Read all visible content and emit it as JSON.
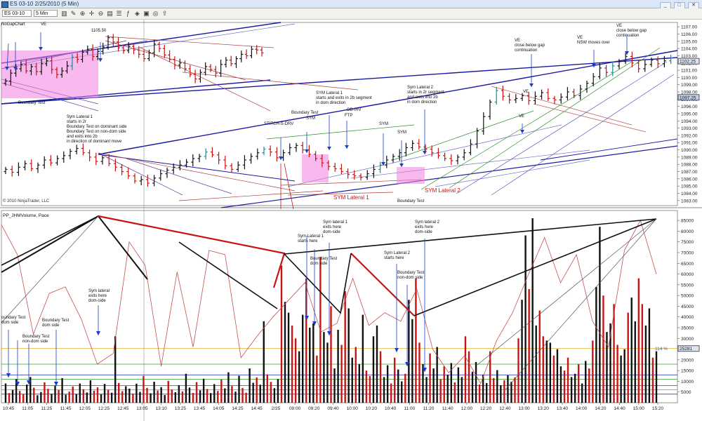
{
  "window": {
    "title": "ES 03-10  2/25/2010 (5 Min)",
    "buttons": [
      "_",
      "□",
      "✕"
    ]
  },
  "toolbar": {
    "instrument": "ES 03-10",
    "interval": "5 Min",
    "icons": [
      "chart-style-icon",
      "magnifier-plus-icon",
      "magnifier-minus-icon",
      "crosshair-icon",
      "properties-icon",
      "indicators-icon",
      "strategies-icon",
      "data-box-icon",
      "drawing-tools-icon",
      "pencil-icon",
      "snapshot-icon",
      "share-icon"
    ]
  },
  "colors": {
    "up_bar": "#111111",
    "down_bar": "#c81414",
    "teal_bar": "#139090",
    "trend_blue": "#1a1aa0",
    "pink_zone": "#f080e0",
    "annot_blue": "#1a3cc8",
    "sym_red": "#c81414"
  },
  "chart_data": [
    {
      "type": "line",
      "name": "price-panel",
      "y_tick_labels": [
        "1083.00",
        "1084.00",
        "1085.00",
        "1086.00",
        "1087.00",
        "1088.00",
        "1089.00",
        "1090.00",
        "1091.00",
        "1092.00",
        "1093.00",
        "1094.00",
        "1095.00",
        "1096.00",
        "1097.00",
        "1098.00",
        "1099.00",
        "1100.00",
        "1101.00",
        "1102.00",
        "1103.00",
        "1104.00",
        "1105.00",
        "1106.00",
        "1107.00"
      ],
      "ylim": [
        1082.3,
        1107.6
      ],
      "price_tags": [
        {
          "label": "1102.25",
          "value": 1102.25
        },
        {
          "label": "1097.25",
          "value": 1097.25
        }
      ],
      "copyright": "© 2010 NinjaTrader, LLC",
      "annotations": [
        {
          "text": "NoGapChart"
        },
        {
          "text": "VE"
        },
        {
          "text": "1105.50"
        },
        {
          "text": "Boundary Test"
        },
        {
          "text": "Sym Lateral 1\nstarts in 2r\nBoundary Test on dominant side\nBoundary Test on non-dom side\nand exits into 2b\nin direction of dominant move"
        },
        {
          "text": "SYM Lateral 1\nstarts and exits in 2b segment\nin dom direction"
        },
        {
          "text": "Boundary Test"
        },
        {
          "text": "STITCH-S-DRV"
        },
        {
          "text": "SYM"
        },
        {
          "text": "OB-IRV"
        },
        {
          "text": "FTP"
        },
        {
          "text": "SYM"
        },
        {
          "text": "SYM"
        },
        {
          "text": "Sym Lateral 2\nstarts in 2r segment\nand exits into 2b\nin dom direction"
        },
        {
          "text": "SYM Lateral 1"
        },
        {
          "text": "SYM Lateral 2"
        },
        {
          "text": "Boundary Test"
        },
        {
          "text": "VE"
        },
        {
          "text": "VE"
        },
        {
          "text": "VE\nclose below gap\ncontinuation"
        },
        {
          "text": "VE\nNSW moves over"
        },
        {
          "text": "VE\nclose below gap\ncontinuation"
        }
      ],
      "series": [
        {
          "values": [
            1099.5,
            1100.6,
            1101.2,
            1101.8,
            1100.9,
            1101.5,
            1100.8,
            1101.9,
            1102.3,
            1101.1,
            1100.4,
            1100.9,
            1101.6,
            1102.8,
            1102.5,
            1103.5,
            1103.9,
            1102.9,
            1103.6,
            1104.2,
            1105.5,
            1104.9,
            1104.1,
            1103.7,
            1104.3,
            1103.8,
            1103.2,
            1102.6,
            1103.4,
            1104.6,
            1104.0,
            1103.1,
            1102.5,
            1101.7,
            1102.0,
            1101.2,
            1100.4,
            1099.8,
            1100.7,
            1101.5,
            1101.1,
            1100.6,
            1101.8,
            1102.4,
            1101.9,
            1102.6,
            1103.2,
            1103.0,
            1103.9,
            1103.8,
            1103.4
          ]
        },
        {
          "values": [
            1087.3,
            1086.9,
            1087.6,
            1088.1,
            1087.4,
            1087.9,
            1088.6,
            1088.2,
            1088.8,
            1089.2,
            1089.8,
            1090.2,
            1089.6,
            1089.0,
            1088.4,
            1088.9,
            1088.1,
            1087.6,
            1087.0,
            1086.4,
            1085.7,
            1085.9,
            1085.4,
            1086.1,
            1086.7,
            1087.2,
            1087.6,
            1087.9,
            1088.3,
            1088.8,
            1089.1,
            1089.7,
            1089.3,
            1088.6,
            1087.8,
            1087.3,
            1087.9,
            1088.6,
            1089.1,
            1089.6,
            1090.1,
            1089.7,
            1088.9,
            1089.6,
            1090.3,
            1090.6,
            1090.0,
            1089.4,
            1088.8,
            1088.2,
            1087.7,
            1087.4,
            1087.0,
            1086.6,
            1086.4,
            1086.2,
            1086.7,
            1087.3,
            1087.9,
            1088.6,
            1089.1,
            1089.6,
            1090.3,
            1090.9,
            1090.4,
            1090.1,
            1089.6,
            1089.2,
            1088.8,
            1088.5,
            1089.0,
            1089.6,
            1090.8,
            1092.6,
            1094.6,
            1096.6,
            1098.2,
            1097.4,
            1096.9,
            1097.1,
            1097.5,
            1096.8,
            1097.4,
            1097.9,
            1097.1,
            1096.9,
            1097.3,
            1098.0,
            1097.5,
            1098.4,
            1099.2,
            1100.1,
            1101.3,
            1100.7,
            1101.6,
            1102.2,
            1102.9,
            1102.0,
            1101.2,
            1101.8,
            1102.4,
            1101.9,
            1102.3,
            1102.7
          ]
        }
      ]
    },
    {
      "type": "bar",
      "name": "volume-panel",
      "title": "PP_JHMVolume, Pace",
      "y_tick_labels": [
        "5000",
        "10000",
        "15000",
        "20000",
        "25000",
        "30000",
        "35000",
        "40000",
        "45000",
        "50000",
        "55000",
        "60000",
        "65000",
        "70000",
        "75000",
        "80000",
        "85000"
      ],
      "ylim": [
        0,
        87000
      ],
      "pace_label": "114 %",
      "pace_value": "25281",
      "x_tick_labels": [
        "10:45",
        "11:05",
        "11:25",
        "11:45",
        "12:05",
        "12:25",
        "12:45",
        "13:05",
        "13:10",
        "13:25",
        "13:45",
        "14:05",
        "14:25",
        "14:45",
        "2/25",
        "09:00",
        "09:20",
        "09:40",
        "10:00",
        "10:20",
        "10:40",
        "11:00",
        "11:20",
        "11:40",
        "12:00",
        "12:20",
        "12:40",
        "13:00",
        "13:20",
        "13:40",
        "14:00",
        "14:20",
        "14:40",
        "15:00",
        "15:20"
      ],
      "annotations": [
        {
          "text": "oundary Test\ndom side"
        },
        {
          "text": "Boundary Test\nnon-dom side"
        },
        {
          "text": "Boundary Test\ndom side"
        },
        {
          "text": "Sym lateral\nexits here\ndom-side"
        },
        {
          "text": "Sym lateral 1\nexits here\ndom-side"
        },
        {
          "text": "Sym Lateral 1\nstarts here"
        },
        {
          "text": "Boundary Test\ndom side"
        },
        {
          "text": "Sym Lateral 2\nstarts here"
        },
        {
          "text": "Boundary Test\nnon-dom side"
        },
        {
          "text": "Sym lateral 2\nexits here\ndom-side"
        }
      ],
      "series": [
        {
          "name": "volume",
          "values": [
            9000,
            4500,
            6000,
            11000,
            5500,
            4000,
            8500,
            12000,
            7000,
            3500,
            5000,
            9500,
            6500,
            4200,
            8000,
            6000,
            11500,
            3800,
            5200,
            7600,
            4100,
            9000,
            6300,
            4800,
            10500,
            5600,
            7200,
            3900,
            8800,
            6100,
            4700,
            31000,
            9200,
            5400,
            7700,
            6600,
            4300,
            8900,
            5100,
            12500,
            6900,
            4400,
            9800,
            5700,
            7300,
            3600,
            10200,
            6200,
            4900,
            8200,
            5300,
            13500,
            7100,
            4600,
            9600,
            5800,
            11200,
            6400,
            4500,
            8700,
            5500,
            10800,
            6700,
            14200,
            7800,
            5200,
            12600,
            6900,
            4700,
            16000,
            9300,
            11800,
            8400,
            38000,
            13200,
            9700,
            6800,
            11000,
            64000,
            47000,
            42000,
            36000,
            30000,
            24000,
            41000,
            58000,
            35000,
            37000,
            22000,
            68000,
            33000,
            28000,
            45000,
            16000,
            34000,
            27000,
            52000,
            44000,
            21000,
            26000,
            18000,
            41000,
            15000,
            12500,
            31000,
            36000,
            24000,
            12000,
            17500,
            9000,
            21000,
            15500,
            10000,
            13500,
            48000,
            39000,
            58000,
            28000,
            18000,
            12000,
            23000,
            16000,
            26000,
            11000,
            17000,
            13000,
            18500,
            9500,
            16500,
            12000,
            31000,
            24000,
            14500,
            19000,
            8500,
            13000,
            9200,
            24000,
            11500,
            15200,
            8200,
            10500,
            12800,
            9800,
            11800,
            30000,
            48000,
            78000,
            53000,
            86000,
            36000,
            43000,
            31000,
            29000,
            28000,
            22000,
            25000,
            17000,
            15000,
            21000,
            12000,
            13500,
            18000,
            9000,
            19500,
            16000,
            29000,
            54000,
            82000,
            50000,
            33000,
            37000,
            46000,
            27000,
            22000,
            25000,
            42000,
            49000,
            38000,
            58000,
            46000,
            36000,
            44000,
            21000,
            24000
          ]
        },
        {
          "name": "pace",
          "values": [
            83000,
            69000,
            32000,
            51000,
            54000,
            39000,
            18000,
            23000,
            75000,
            64000,
            17000,
            61000,
            26000,
            71000,
            69000,
            21000,
            31000,
            40000,
            48000,
            56000,
            33000,
            37000,
            58000,
            36000,
            42000,
            38000,
            53000,
            25000,
            14000,
            22000,
            9000,
            29000,
            42000,
            60000,
            77000,
            56000,
            69000,
            38000,
            26000,
            71000,
            85000,
            60000
          ]
        }
      ]
    }
  ]
}
